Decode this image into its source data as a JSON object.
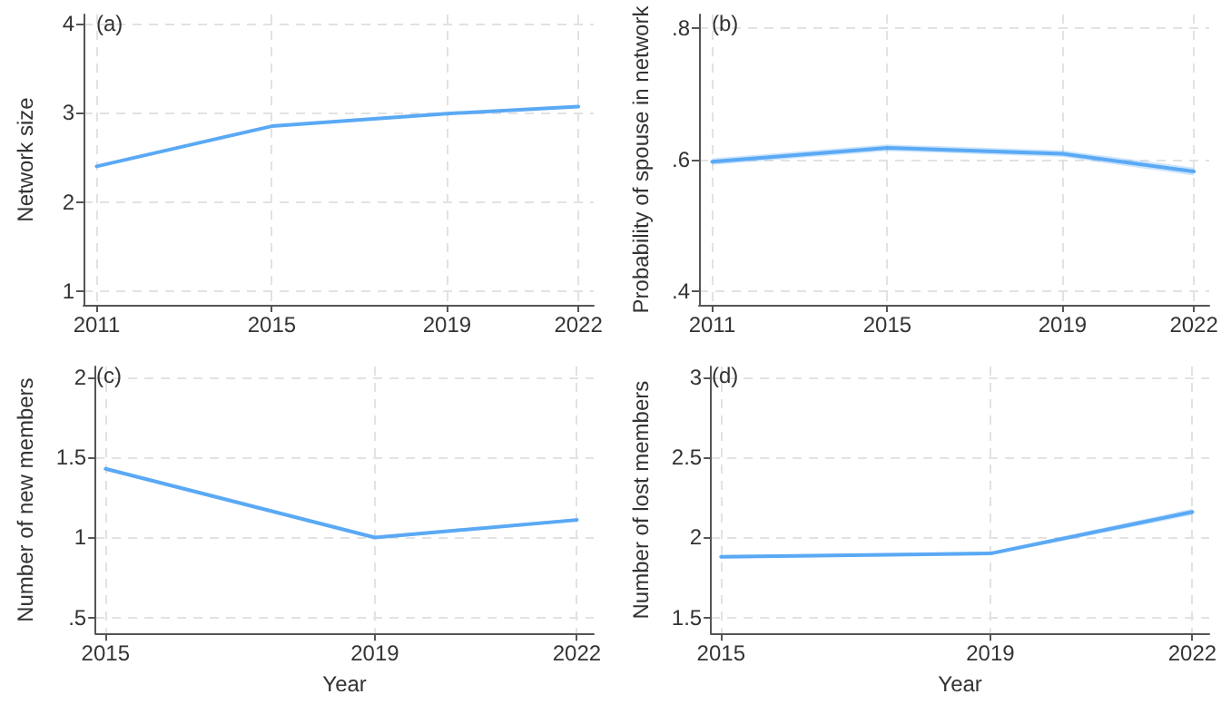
{
  "chart_data": [
    {
      "type": "line",
      "title": "(a)",
      "ylabel": "Network size",
      "x": [
        2011,
        2015,
        2019,
        2022
      ],
      "series": [
        {
          "color": "#5aa9f5",
          "values": [
            2.4,
            2.85,
            2.99,
            3.07
          ]
        }
      ],
      "xlim": [
        2010.7,
        2022.35
      ],
      "xticks": [
        2011,
        2015,
        2019,
        2022
      ],
      "ylim": [
        0.85,
        4.1
      ],
      "yticks": [
        1,
        2,
        3,
        4
      ],
      "grid": true
    },
    {
      "type": "line",
      "title": "(b)",
      "ylabel": "Probability of spouse in network",
      "x": [
        2011,
        2015,
        2019,
        2022
      ],
      "series": [
        {
          "color": "#5aa9f5",
          "values": [
            0.597,
            0.618,
            0.609,
            0.582
          ],
          "lower": [
            0.592,
            0.613,
            0.604,
            0.576
          ],
          "upper": [
            0.602,
            0.623,
            0.614,
            0.588
          ]
        }
      ],
      "xlim": [
        2010.7,
        2022.35
      ],
      "xticks": [
        2011,
        2015,
        2019,
        2022
      ],
      "ylim": [
        0.38,
        0.82
      ],
      "yticks": [
        {
          "value": 0.4,
          "label": ".4"
        },
        {
          "value": 0.6,
          "label": ".6"
        },
        {
          "value": 0.8,
          "label": ".8"
        }
      ],
      "grid": true
    },
    {
      "type": "line",
      "title": "(c)",
      "xlabel": "Year",
      "ylabel": "Number of new members",
      "x": [
        2015,
        2019,
        2022
      ],
      "series": [
        {
          "color": "#5aa9f5",
          "values": [
            1.43,
            1.0,
            1.11
          ],
          "lower": [
            1.42,
            0.99,
            1.1
          ],
          "upper": [
            1.44,
            1.01,
            1.12
          ]
        }
      ],
      "xlim": [
        2014.85,
        2022.25
      ],
      "xticks": [
        2015,
        2019,
        2022
      ],
      "ylim": [
        0.4,
        2.07
      ],
      "yticks": [
        {
          "value": 0.5,
          "label": ".5"
        },
        1,
        1.5,
        2
      ],
      "grid": true
    },
    {
      "type": "line",
      "title": "(d)",
      "xlabel": "Year",
      "ylabel": "Number of lost members",
      "x": [
        2015,
        2019,
        2022
      ],
      "series": [
        {
          "color": "#5aa9f5",
          "values": [
            1.88,
            1.9,
            2.16
          ],
          "lower": [
            1.87,
            1.89,
            2.14
          ],
          "upper": [
            1.89,
            1.91,
            2.18
          ]
        }
      ],
      "xlim": [
        2014.85,
        2022.25
      ],
      "xticks": [
        2015,
        2019,
        2022
      ],
      "ylim": [
        1.4,
        3.07
      ],
      "yticks": [
        1.5,
        2,
        2.5,
        3
      ],
      "grid": true
    }
  ]
}
